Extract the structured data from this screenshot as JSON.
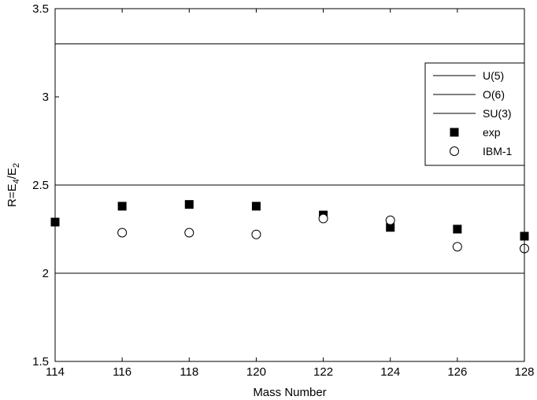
{
  "chart_data": {
    "type": "scatter",
    "xlabel": "Mass Number",
    "ylabel": "R=E4/E2",
    "ylabel_parts": {
      "base": "R=E",
      "sub1": "4",
      "slash": "/E",
      "sub2": "2"
    },
    "xlim": [
      114,
      128
    ],
    "ylim": [
      1.5,
      3.5
    ],
    "xticks": [
      114,
      116,
      118,
      120,
      122,
      124,
      126,
      128
    ],
    "yticks": [
      1.5,
      2,
      2.5,
      3,
      3.5
    ],
    "ytick_labels": [
      "1.5",
      "2",
      "2.5",
      "3",
      "3.5"
    ],
    "grid": false,
    "legend_position": "top-right",
    "reference_lines": [
      {
        "name": "U(5)",
        "y": 2.0
      },
      {
        "name": "O(6)",
        "y": 2.5
      },
      {
        "name": "SU(3)",
        "y": 3.3
      }
    ],
    "series": [
      {
        "name": "exp",
        "marker": "filled-square",
        "x": [
          114,
          116,
          118,
          120,
          122,
          124,
          126,
          128
        ],
        "y": [
          2.29,
          2.38,
          2.39,
          2.38,
          2.33,
          2.26,
          2.25,
          2.21
        ]
      },
      {
        "name": "IBM-1",
        "marker": "open-circle",
        "x": [
          116,
          118,
          120,
          122,
          124,
          126,
          128
        ],
        "y": [
          2.23,
          2.23,
          2.22,
          2.31,
          2.3,
          2.15,
          2.14
        ]
      }
    ],
    "colors": {
      "axis": "#000000",
      "line": "#000000",
      "marker": "#000000",
      "background": "#ffffff"
    }
  }
}
